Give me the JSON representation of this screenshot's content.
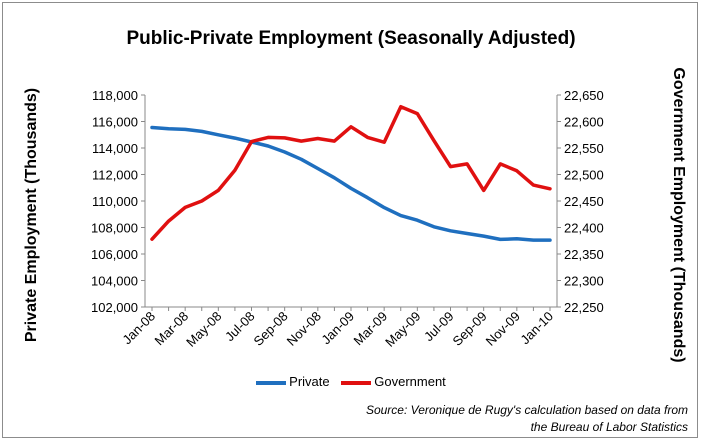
{
  "chart_data": {
    "type": "line",
    "title": "Public-Private Employment (Seasonally Adjusted)",
    "ylabel_left": "Private Employment (Thousands)",
    "ylabel_right": "Government Employment (Thousands)",
    "ylim_left": [
      102000,
      118000
    ],
    "ylim_right": [
      22250,
      22650
    ],
    "yticks_left": [
      "102,000",
      "104,000",
      "106,000",
      "108,000",
      "110,000",
      "112,000",
      "114,000",
      "116,000",
      "118,000"
    ],
    "yticks_right": [
      "22,250",
      "22,300",
      "22,350",
      "22,400",
      "22,450",
      "22,500",
      "22,550",
      "22,600",
      "22,650"
    ],
    "x": [
      "Jan-08",
      "Feb-08",
      "Mar-08",
      "Apr-08",
      "May-08",
      "Jun-08",
      "Jul-08",
      "Aug-08",
      "Sep-08",
      "Oct-08",
      "Nov-08",
      "Dec-08",
      "Jan-09",
      "Feb-09",
      "Mar-09",
      "Apr-09",
      "May-09",
      "Jun-09",
      "Jul-09",
      "Aug-09",
      "Sep-09",
      "Oct-09",
      "Nov-09",
      "Dec-09",
      "Jan-10"
    ],
    "x_tick_labels": [
      "Jan-08",
      "Mar-08",
      "May-08",
      "Jul-08",
      "Sep-08",
      "Nov-08",
      "Jan-09",
      "Mar-09",
      "May-09",
      "Jul-09",
      "Sep-09",
      "Nov-09",
      "Jan-10"
    ],
    "series": [
      {
        "name": "Private",
        "axis": "left",
        "color": "#1f6fbf",
        "values": [
          115550,
          115450,
          115400,
          115250,
          115000,
          114750,
          114450,
          114150,
          113700,
          113150,
          112450,
          111750,
          110950,
          110250,
          109500,
          108900,
          108550,
          108050,
          107750,
          107550,
          107350,
          107100,
          107150,
          107050,
          107050
        ]
      },
      {
        "name": "Government",
        "axis": "right",
        "color": "#e01010",
        "values": [
          22378,
          22412,
          22438,
          22450,
          22470,
          22508,
          22562,
          22570,
          22569,
          22563,
          22568,
          22563,
          22590,
          22570,
          22561,
          22628,
          22615,
          22564,
          22515,
          22520,
          22470,
          22520,
          22507,
          22480,
          22473
        ]
      }
    ],
    "grid": false,
    "legend_position": "bottom"
  },
  "source_line1": "Source: Veronique de Rugy's calculation based on data from",
  "source_line2": "the Bureau of Labor Statistics"
}
